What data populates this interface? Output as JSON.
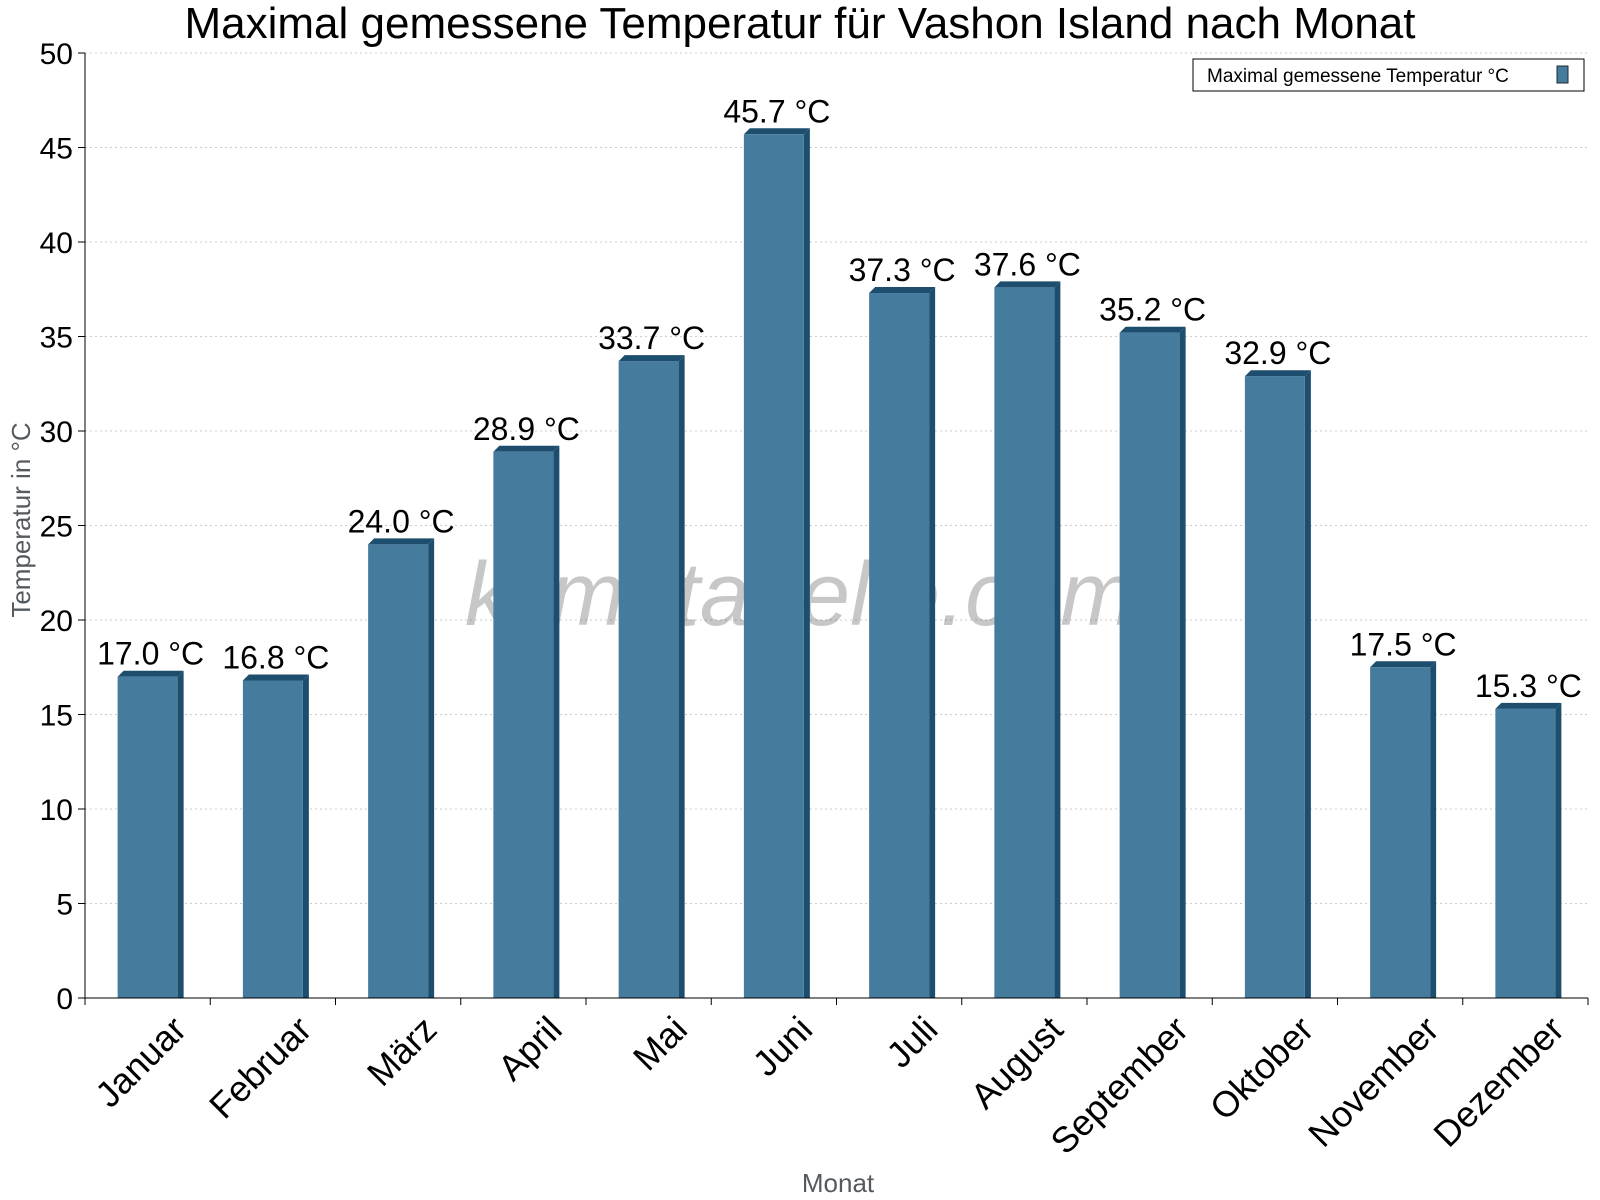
{
  "chart_data": {
    "type": "bar",
    "title": "Maximal gemessene Temperatur für Vashon Island nach Monat",
    "xlabel": "Monat",
    "ylabel": "Temperatur in °C",
    "ylim": [
      0,
      50
    ],
    "yticks": [
      0,
      5,
      10,
      15,
      20,
      25,
      30,
      35,
      40,
      45,
      50
    ],
    "grid": true,
    "legend_position": "top-right",
    "categories": [
      "Januar",
      "Februar",
      "März",
      "April",
      "Mai",
      "Juni",
      "Juli",
      "August",
      "September",
      "Oktober",
      "November",
      "Dezember"
    ],
    "series": [
      {
        "name": "Maximal gemessene Temperatur °C",
        "values": [
          17.0,
          16.8,
          24.0,
          28.9,
          33.7,
          45.7,
          37.3,
          37.6,
          35.2,
          32.9,
          17.5,
          15.3
        ],
        "labels": [
          "17.0 °C",
          "16.8 °C",
          "24.0 °C",
          "28.9 °C",
          "33.7 °C",
          "45.7 °C",
          "37.3 °C",
          "37.6 °C",
          "35.2 °C",
          "32.9 °C",
          "17.5 °C",
          "15.3 °C"
        ],
        "color": "#457b9d",
        "side_color": "#1d4e6e"
      }
    ],
    "watermark": "klimatabelle.com"
  }
}
